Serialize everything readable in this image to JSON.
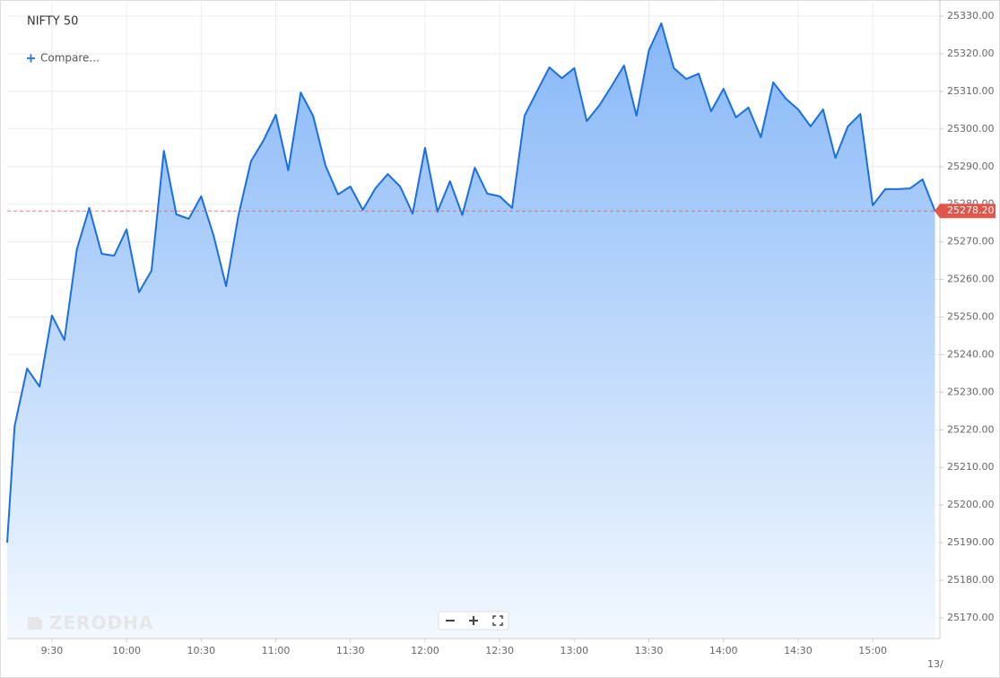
{
  "chart_data": {
    "type": "area",
    "title": "NIFTY 50",
    "compare_button": "Compare...",
    "watermark": "ZERODHA",
    "date_label": "13/",
    "x": [
      552,
      555,
      560,
      565,
      570,
      575,
      580,
      585,
      590,
      595,
      600,
      605,
      610,
      615,
      620,
      625,
      630,
      635,
      640,
      645,
      650,
      655,
      660,
      665,
      670,
      675,
      680,
      685,
      690,
      695,
      700,
      705,
      710,
      715,
      720,
      725,
      730,
      735,
      740,
      745,
      750,
      755,
      760,
      765,
      770,
      775,
      780,
      785,
      790,
      795,
      800,
      805,
      810,
      815,
      820,
      825,
      830,
      835,
      840,
      845,
      850,
      855,
      860,
      865,
      870,
      875,
      880,
      885,
      890,
      895,
      900,
      905,
      910,
      915,
      920,
      925
    ],
    "series": [
      {
        "name": "NIFTY 50",
        "color": "#1a6fe0",
        "values": [
          25190.0,
          25221.0,
          25236.3,
          25231.5,
          25250.4,
          25243.9,
          25268.0,
          25279.0,
          25266.8,
          25266.3,
          25273.3,
          25256.6,
          25262.3,
          25294.2,
          25277.3,
          25276.1,
          25282.1,
          25271.6,
          25258.2,
          25277.1,
          25291.4,
          25296.9,
          25303.8,
          25289.0,
          25309.7,
          25303.5,
          25290.2,
          25282.6,
          25284.7,
          25278.5,
          25284.2,
          25288.0,
          25284.7,
          25277.5,
          25295.0,
          25278.0,
          25286.1,
          25277.1,
          25289.7,
          25282.8,
          25282.1,
          25279.0,
          25303.5,
          25310.0,
          25316.4,
          25313.5,
          25316.2,
          25302.1,
          25306.2,
          25311.4,
          25316.9,
          25303.5,
          25320.9,
          25328.1,
          25316.2,
          25313.3,
          25314.7,
          25304.7,
          25310.7,
          25303.1,
          25305.7,
          25297.8,
          25312.4,
          25308.1,
          25305.2,
          25300.7,
          25305.2,
          25292.3,
          25300.7,
          25304.0,
          25279.7,
          25284.0,
          25284.0,
          25284.2,
          25286.6,
          25278.2
        ]
      }
    ],
    "last_price": {
      "value": 25278.2,
      "label": "25278.20"
    },
    "xlim": [
      552,
      927
    ],
    "xticks": [
      {
        "value": 570,
        "label": "9:30"
      },
      {
        "value": 600,
        "label": "10:00"
      },
      {
        "value": 630,
        "label": "10:30"
      },
      {
        "value": 660,
        "label": "11:00"
      },
      {
        "value": 690,
        "label": "11:30"
      },
      {
        "value": 720,
        "label": "12:00"
      },
      {
        "value": 750,
        "label": "12:30"
      },
      {
        "value": 780,
        "label": "13:00"
      },
      {
        "value": 810,
        "label": "13:30"
      },
      {
        "value": 840,
        "label": "14:00"
      },
      {
        "value": 870,
        "label": "14:30"
      },
      {
        "value": 900,
        "label": "15:00"
      }
    ],
    "ylim": [
      25164.5,
      25334.3
    ],
    "yticks": [
      {
        "value": 25170,
        "label": "25170.00"
      },
      {
        "value": 25180,
        "label": "25180.00"
      },
      {
        "value": 25190,
        "label": "25190.00"
      },
      {
        "value": 25200,
        "label": "25200.00"
      },
      {
        "value": 25210,
        "label": "25210.00"
      },
      {
        "value": 25220,
        "label": "25220.00"
      },
      {
        "value": 25230,
        "label": "25230.00"
      },
      {
        "value": 25240,
        "label": "25240.00"
      },
      {
        "value": 25250,
        "label": "25250.00"
      },
      {
        "value": 25260,
        "label": "25260.00"
      },
      {
        "value": 25270,
        "label": "25270.00"
      },
      {
        "value": 25280,
        "label": "25280.00"
      },
      {
        "value": 25290,
        "label": "25290.00"
      },
      {
        "value": 25300,
        "label": "25300.00"
      },
      {
        "value": 25310,
        "label": "25310.00"
      },
      {
        "value": 25320,
        "label": "25320.00"
      },
      {
        "value": 25330,
        "label": "25330.00"
      }
    ],
    "grid": true
  }
}
